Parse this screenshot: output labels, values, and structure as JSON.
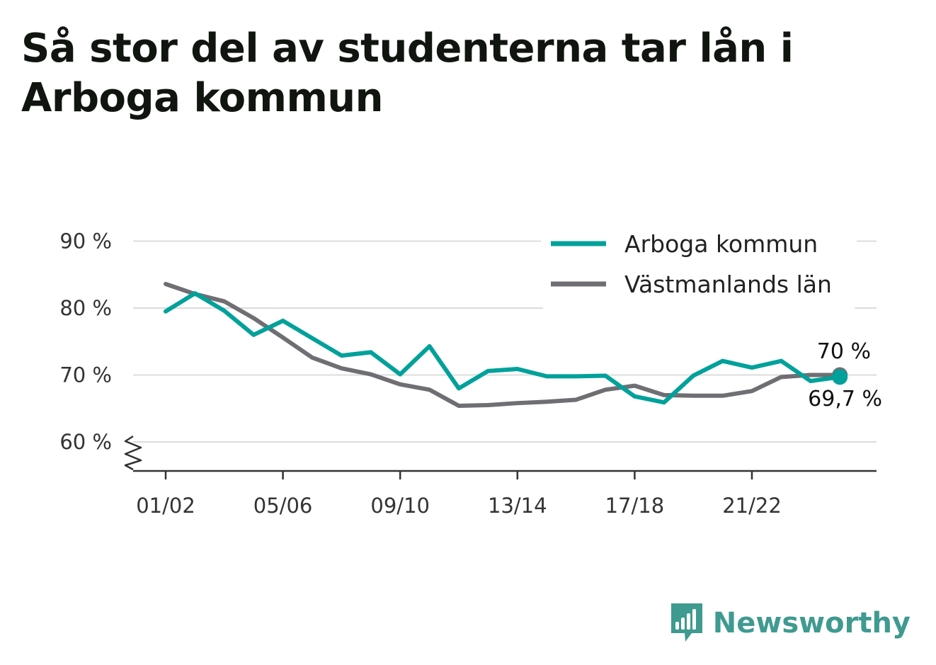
{
  "title": "Så stor del av studenterna tar lån i Arboga kommun",
  "brand": {
    "name": "Newsworthy",
    "icon": "bar-chart-speech-bubble-icon",
    "color": "#3f9a90"
  },
  "chart_data": {
    "type": "line",
    "x": [
      "01/02",
      "02/03",
      "03/04",
      "04/05",
      "05/06",
      "06/07",
      "07/08",
      "08/09",
      "09/10",
      "10/11",
      "11/12",
      "12/13",
      "13/14",
      "14/15",
      "15/16",
      "16/17",
      "17/18",
      "18/19",
      "19/20",
      "20/21",
      "21/22",
      "22/23",
      "23/24",
      "24/25"
    ],
    "xticks": [
      "01/02",
      "05/06",
      "09/10",
      "13/14",
      "17/18",
      "21/22"
    ],
    "yticks": [
      60,
      70,
      80,
      90
    ],
    "ytick_labels": [
      "60 %",
      "70 %",
      "80 %",
      "90 %"
    ],
    "ylim": [
      55.5,
      90
    ],
    "axis_break": true,
    "grid": "horizontal",
    "legend_position": "top-right",
    "series": [
      {
        "name": "Arboga kommun",
        "color": "#00a19a",
        "values": [
          79.5,
          82.2,
          79.6,
          76.0,
          78.1,
          75.5,
          72.9,
          73.4,
          70.1,
          74.3,
          68.0,
          70.6,
          70.9,
          69.8,
          69.8,
          69.9,
          66.8,
          65.9,
          69.9,
          72.1,
          71.1,
          72.1,
          69.1,
          69.7
        ],
        "end_label": "69,7 %"
      },
      {
        "name": "Västmanlands län",
        "color": "#6e6e73",
        "values": [
          83.6,
          82.1,
          81.0,
          78.5,
          75.6,
          72.6,
          71.0,
          70.1,
          68.6,
          67.8,
          65.4,
          65.5,
          65.8,
          66.0,
          66.3,
          67.8,
          68.4,
          67.0,
          66.9,
          66.9,
          67.6,
          69.7,
          70.0,
          70.0
        ],
        "end_label": "70 %"
      }
    ]
  }
}
